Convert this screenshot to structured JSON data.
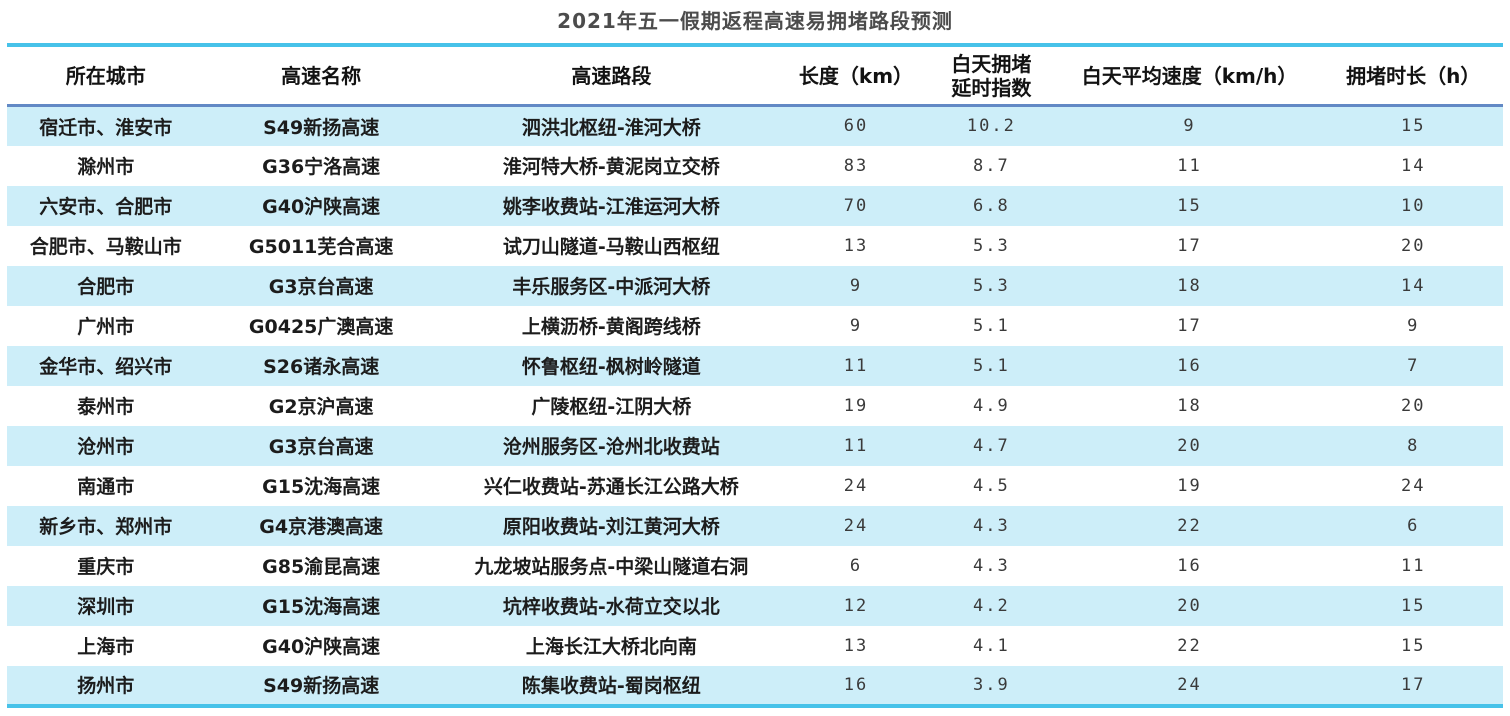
{
  "title": "2021年五一假期返程高速易拥堵路段预测",
  "colors": {
    "accent_line": "#47c2e9",
    "header_underline": "#6289c5",
    "row_stripe": "#cdeef9",
    "title_text": "#4c4c4c",
    "header_text": "#121212",
    "cell_text": "#1c1c1c",
    "number_text": "#3a3a3a"
  },
  "chart_data": {
    "type": "table",
    "title": "2021年五一假期返程高速易拥堵路段预测",
    "columns": [
      "所在城市",
      "高速名称",
      "高速路段",
      "长度（km）",
      "白天拥堵\n延时指数",
      "白天平均速度（km/h）",
      "拥堵时长（h）"
    ],
    "rows": [
      [
        "宿迁市、淮安市",
        "S49新扬高速",
        "泗洪北枢纽-淮河大桥",
        "60",
        "10.2",
        "9",
        "15"
      ],
      [
        "滁州市",
        "G36宁洛高速",
        "淮河特大桥-黄泥岗立交桥",
        "83",
        "8.7",
        "11",
        "14"
      ],
      [
        "六安市、合肥市",
        "G40沪陕高速",
        "姚李收费站-江淮运河大桥",
        "70",
        "6.8",
        "15",
        "10"
      ],
      [
        "合肥市、马鞍山市",
        "G5011芜合高速",
        "试刀山隧道-马鞍山西枢纽",
        "13",
        "5.3",
        "17",
        "20"
      ],
      [
        "合肥市",
        "G3京台高速",
        "丰乐服务区-中派河大桥",
        "9",
        "5.3",
        "18",
        "14"
      ],
      [
        "广州市",
        "G0425广澳高速",
        "上横沥桥-黄阁跨线桥",
        "9",
        "5.1",
        "17",
        "9"
      ],
      [
        "金华市、绍兴市",
        "S26诸永高速",
        "怀鲁枢纽-枫树岭隧道",
        "11",
        "5.1",
        "16",
        "7"
      ],
      [
        "泰州市",
        "G2京沪高速",
        "广陵枢纽-江阴大桥",
        "19",
        "4.9",
        "18",
        "20"
      ],
      [
        "沧州市",
        "G3京台高速",
        "沧州服务区-沧州北收费站",
        "11",
        "4.7",
        "20",
        "8"
      ],
      [
        "南通市",
        "G15沈海高速",
        "兴仁收费站-苏通长江公路大桥",
        "24",
        "4.5",
        "19",
        "24"
      ],
      [
        "新乡市、郑州市",
        "G4京港澳高速",
        "原阳收费站-刘江黄河大桥",
        "24",
        "4.3",
        "22",
        "6"
      ],
      [
        "重庆市",
        "G85渝昆高速",
        "九龙坡站服务点-中梁山隧道右洞",
        "6",
        "4.3",
        "16",
        "11"
      ],
      [
        "深圳市",
        "G15沈海高速",
        "坑梓收费站-水荷立交以北",
        "12",
        "4.2",
        "20",
        "15"
      ],
      [
        "上海市",
        "G40沪陕高速",
        "上海长江大桥北向南",
        "13",
        "4.1",
        "22",
        "15"
      ],
      [
        "扬州市",
        "S49新扬高速",
        "陈集收费站-蜀岗枢纽",
        "16",
        "3.9",
        "24",
        "17"
      ]
    ]
  }
}
